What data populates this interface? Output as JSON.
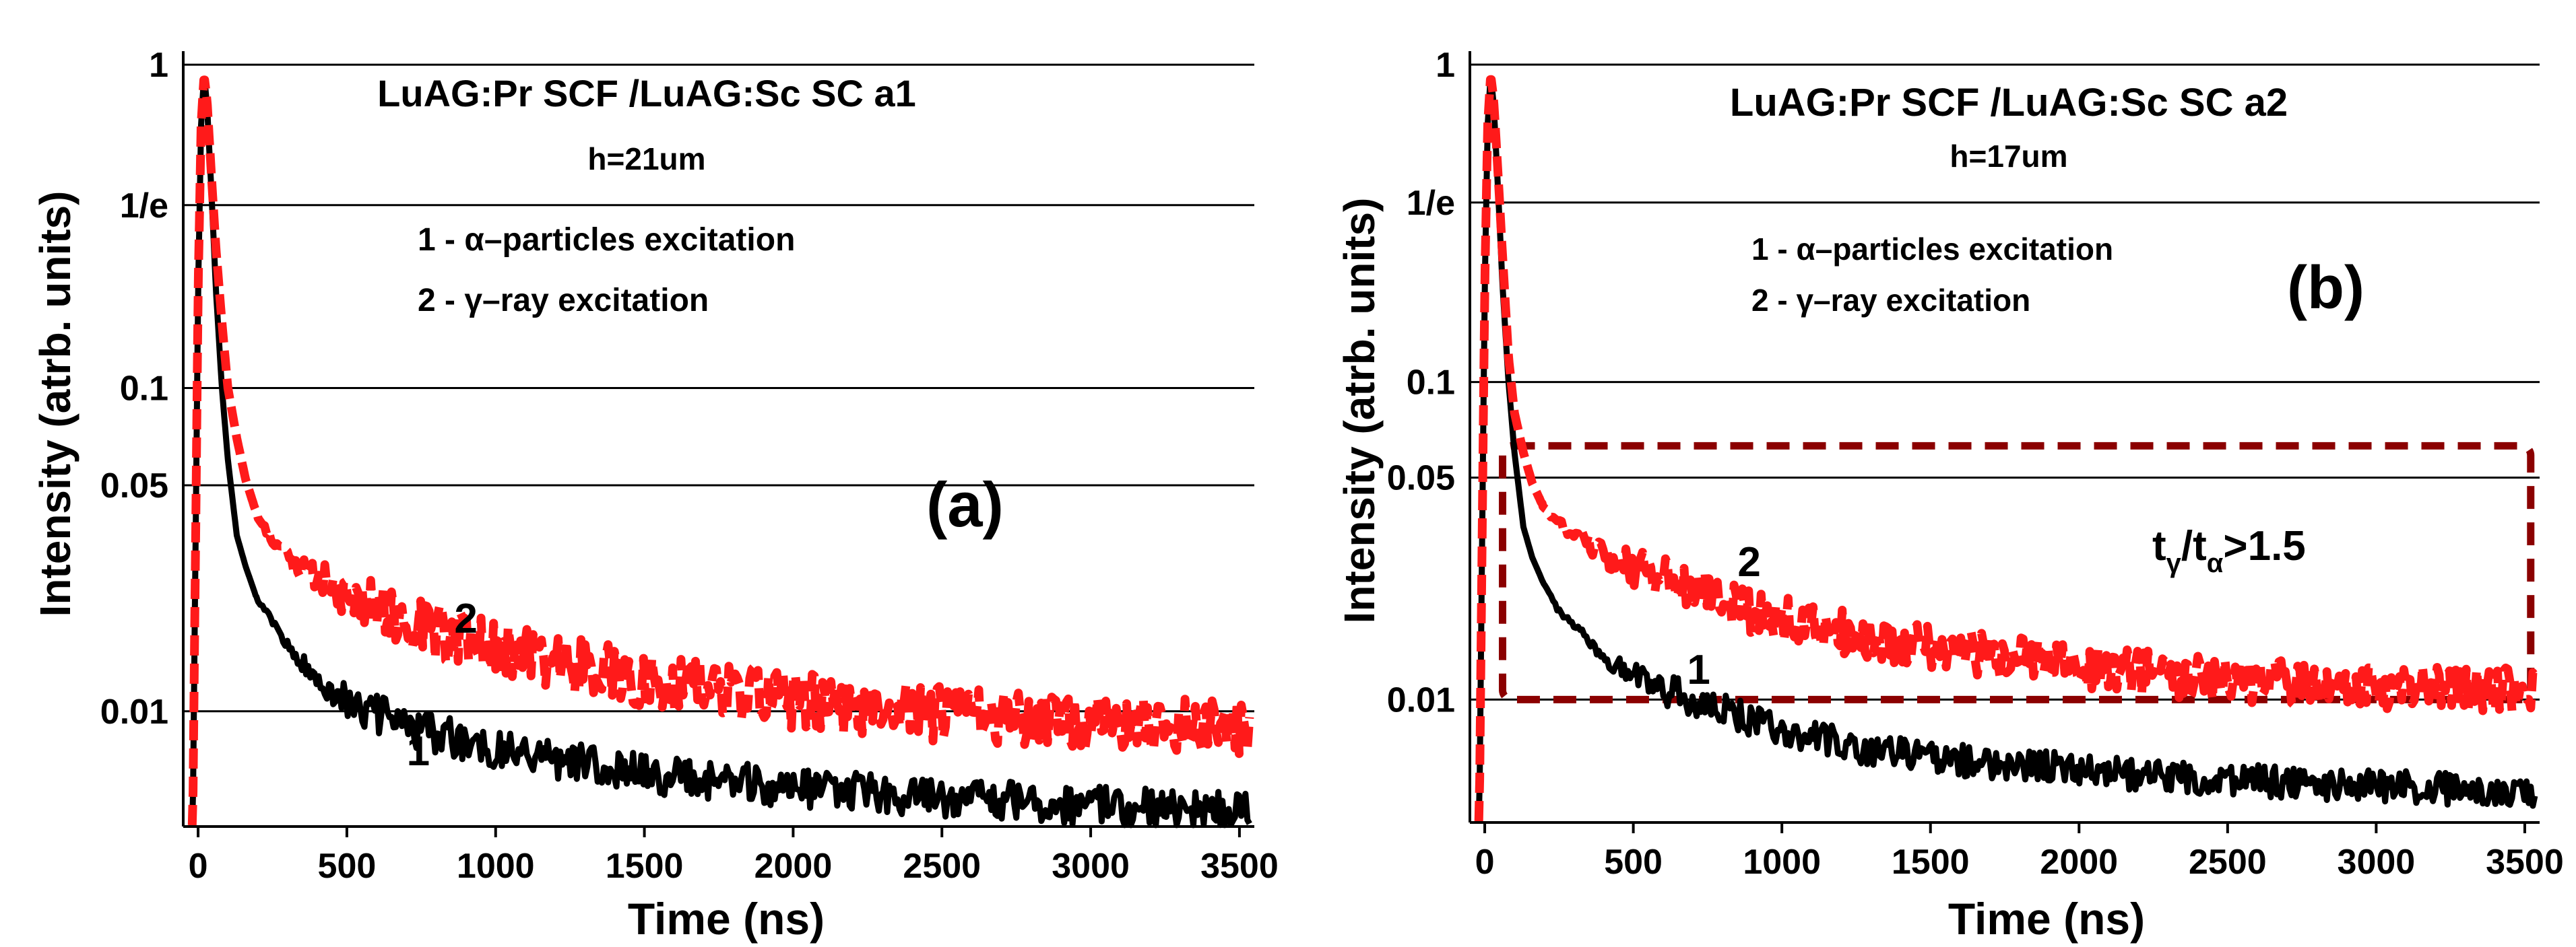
{
  "colors": {
    "alpha": "#000000",
    "gamma": "#ff1a1a",
    "box": "#8b0000",
    "grid": "#000000"
  },
  "chart_data": [
    {
      "type": "line",
      "panel_label": "(a)",
      "title": "LuAG:Pr SCF /LuAG:Sc SC a1",
      "subtitle": "h=21um",
      "legend": [
        "1 - α–particles excitation",
        "2 - γ–ray excitation"
      ],
      "xlabel": "Time (ns)",
      "ylabel": "Intensity (atrb. units)",
      "xlim": [
        -50,
        3550
      ],
      "ylim": [
        0.0044,
        1.05
      ],
      "yscale": "log",
      "xticks": [
        0,
        500,
        1000,
        1500,
        2000,
        2500,
        3000,
        3500
      ],
      "yticks": [
        {
          "value": 1,
          "label": "1"
        },
        {
          "value": 0.3679,
          "label": "1/e"
        },
        {
          "value": 0.1,
          "label": "0.1"
        },
        {
          "value": 0.05,
          "label": "0.05"
        },
        {
          "value": 0.01,
          "label": "0.01"
        }
      ],
      "curve_labels": [
        {
          "text": "1",
          "x": 740,
          "y": 0.0068
        },
        {
          "text": "2",
          "x": 900,
          "y": 0.0175
        }
      ],
      "series": [
        {
          "name": "1",
          "color": "#000000",
          "dashed": false,
          "x": [
            -20,
            0,
            10,
            20,
            30,
            45,
            60,
            80,
            100,
            130,
            160,
            200,
            250,
            300,
            400,
            500,
            600,
            700,
            800,
            1000,
            1250,
            1500,
            2000,
            2500,
            3000,
            3500
          ],
          "y": [
            0.003,
            0.2,
            0.65,
            0.93,
            0.75,
            0.4,
            0.2,
            0.1,
            0.06,
            0.035,
            0.028,
            0.022,
            0.019,
            0.016,
            0.0125,
            0.0108,
            0.0098,
            0.009,
            0.0085,
            0.0077,
            0.007,
            0.0064,
            0.0058,
            0.0054,
            0.0051,
            0.0049
          ],
          "noise": 0.14
        },
        {
          "name": "2",
          "color": "#ff1a1a",
          "dashed": true,
          "x": [
            -20,
            0,
            10,
            20,
            30,
            45,
            60,
            80,
            100,
            130,
            160,
            200,
            250,
            300,
            400,
            500,
            700,
            900,
            1250,
            1500,
            2000,
            2500,
            3000,
            3500
          ],
          "y": [
            0.003,
            0.2,
            0.65,
            0.93,
            0.78,
            0.45,
            0.27,
            0.16,
            0.1,
            0.07,
            0.052,
            0.04,
            0.034,
            0.03,
            0.026,
            0.023,
            0.019,
            0.0165,
            0.014,
            0.0125,
            0.0108,
            0.0098,
            0.0092,
            0.0088
          ],
          "noise": 0.2
        }
      ]
    },
    {
      "type": "line",
      "panel_label": "(b)",
      "title": "LuAG:Pr SCF /LuAG:Sc SC a2",
      "subtitle": "h=17um",
      "legend": [
        "1 - α–particles excitation",
        "2 - γ–ray excitation"
      ],
      "annotation": {
        "t": "t",
        "gamma": "γ",
        "slash": "/t",
        "alpha": "α",
        "rest": ">1.5"
      },
      "xlabel": "Time (ns)",
      "ylabel": "Intensity (atrb. units)",
      "xlim": [
        -50,
        3550
      ],
      "ylim": [
        0.0041,
        1.05
      ],
      "yscale": "log",
      "xticks": [
        0,
        500,
        1000,
        1500,
        2000,
        2500,
        3000,
        3500
      ],
      "yticks": [
        {
          "value": 1,
          "label": "1"
        },
        {
          "value": 0.3679,
          "label": "1/e"
        },
        {
          "value": 0.1,
          "label": "0.1"
        },
        {
          "value": 0.05,
          "label": "0.05"
        },
        {
          "value": 0.01,
          "label": "0.01"
        }
      ],
      "highlight_box": {
        "x0": 60,
        "x1": 3520,
        "y0": 0.01,
        "y1": 0.063
      },
      "curve_labels": [
        {
          "text": "1",
          "x": 720,
          "y": 0.0112
        },
        {
          "text": "2",
          "x": 890,
          "y": 0.0245
        }
      ],
      "series": [
        {
          "name": "1",
          "color": "#000000",
          "dashed": false,
          "x": [
            -20,
            0,
            10,
            20,
            30,
            45,
            60,
            80,
            100,
            130,
            160,
            200,
            250,
            300,
            400,
            500,
            600,
            700,
            800,
            1000,
            1250,
            1500,
            2000,
            2500,
            3000,
            3500
          ],
          "y": [
            0.003,
            0.2,
            0.65,
            0.93,
            0.75,
            0.4,
            0.2,
            0.1,
            0.06,
            0.035,
            0.028,
            0.023,
            0.019,
            0.017,
            0.0135,
            0.0118,
            0.0108,
            0.01,
            0.0092,
            0.008,
            0.0071,
            0.0065,
            0.006,
            0.0056,
            0.0053,
            0.0052
          ],
          "noise": 0.12
        },
        {
          "name": "2",
          "color": "#ff1a1a",
          "dashed": true,
          "x": [
            -20,
            0,
            10,
            20,
            30,
            45,
            60,
            80,
            100,
            130,
            160,
            200,
            250,
            300,
            400,
            500,
            700,
            900,
            1250,
            1500,
            2000,
            2500,
            3000,
            3500
          ],
          "y": [
            0.003,
            0.2,
            0.65,
            0.93,
            0.78,
            0.45,
            0.25,
            0.12,
            0.08,
            0.06,
            0.048,
            0.04,
            0.036,
            0.033,
            0.029,
            0.026,
            0.022,
            0.019,
            0.016,
            0.0145,
            0.0127,
            0.0115,
            0.011,
            0.0107
          ],
          "noise": 0.16
        }
      ]
    }
  ]
}
